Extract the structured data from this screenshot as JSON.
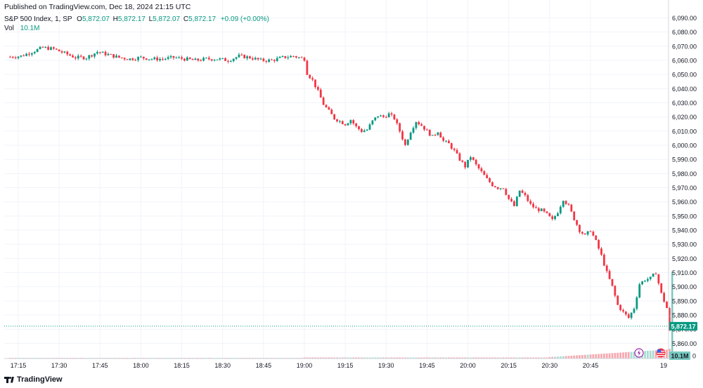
{
  "header": {
    "published": "Published on TradingView.com, Dec 18, 2024 21:15 UTC"
  },
  "legend": {
    "symbol": "S&P 500 Index, 1, SP",
    "open_label": "O",
    "open": "5,872.07",
    "high_label": "H",
    "high": "5,872.17",
    "low_label": "L",
    "low": "5,872.07",
    "close_label": "C",
    "close": "5,872.17",
    "change": "+0.09 (+0.00%)",
    "vol_label": "Vol",
    "vol": "10.1M"
  },
  "footer": {
    "brand": "TradingView"
  },
  "colors": {
    "up": "#089981",
    "down": "#f23645",
    "grid": "#f0f3fa",
    "text": "#131722"
  },
  "chart_data": {
    "type": "candlestick",
    "title": "S&P 500 Index, 1, SP",
    "ylim": [
      5852,
      6096
    ],
    "y_ticks": [
      6090,
      6080,
      6070,
      6060,
      6050,
      6040,
      6030,
      6020,
      6010,
      6000,
      5990,
      5980,
      5970,
      5960,
      5950,
      5940,
      5930,
      5920,
      5910,
      5900,
      5890,
      5880,
      5870,
      5860
    ],
    "y_tick_labels": [
      "6,090.00",
      "6,080.00",
      "6,070.00",
      "6,060.00",
      "6,050.00",
      "6,040.00",
      "6,030.00",
      "6,020.00",
      "6,010.00",
      "6,000.00",
      "5,990.00",
      "5,980.00",
      "5,970.00",
      "5,960.00",
      "5,950.00",
      "5,940.00",
      "5,930.00",
      "5,920.00",
      "5,910.00",
      "5,900.00",
      "5,890.00",
      "5,880.00",
      "5,870.00",
      "5,860.00"
    ],
    "x_ticks": [
      "17:15",
      "17:30",
      "17:45",
      "18:00",
      "18:15",
      "18:30",
      "18:45",
      "19:00",
      "19:15",
      "19:30",
      "19:45",
      "20:00",
      "20:15",
      "20:30",
      "20:45",
      "19"
    ],
    "last_price_label": "5,872.17",
    "last_price": 5872.17,
    "volume_label": "10.1M",
    "volume_zero_label": "0",
    "close_path": [
      [
        "17:12",
        6062.5
      ],
      [
        "17:16",
        6063
      ],
      [
        "17:20",
        6066
      ],
      [
        "17:24",
        6069
      ],
      [
        "17:28",
        6068
      ],
      [
        "17:32",
        6065
      ],
      [
        "17:36",
        6062
      ],
      [
        "17:40",
        6062
      ],
      [
        "17:44",
        6066
      ],
      [
        "17:48",
        6064
      ],
      [
        "17:52",
        6062
      ],
      [
        "17:56",
        6061
      ],
      [
        "18:00",
        6062
      ],
      [
        "18:04",
        6061
      ],
      [
        "18:08",
        6061
      ],
      [
        "18:12",
        6062
      ],
      [
        "18:16",
        6061
      ],
      [
        "18:20",
        6060
      ],
      [
        "18:24",
        6061
      ],
      [
        "18:28",
        6061
      ],
      [
        "18:32",
        6060
      ],
      [
        "18:36",
        6063
      ],
      [
        "18:40",
        6062
      ],
      [
        "18:44",
        6060
      ],
      [
        "18:48",
        6060
      ],
      [
        "18:52",
        6062
      ],
      [
        "18:56",
        6063
      ],
      [
        "19:00",
        6061
      ],
      [
        "19:01",
        6051
      ],
      [
        "19:03",
        6046
      ],
      [
        "19:05",
        6038
      ],
      [
        "19:07",
        6029
      ],
      [
        "19:09",
        6024
      ],
      [
        "19:11",
        6019
      ],
      [
        "19:13",
        6017
      ],
      [
        "19:15",
        6015
      ],
      [
        "19:17",
        6018
      ],
      [
        "19:19",
        6013
      ],
      [
        "19:21",
        6010
      ],
      [
        "19:23",
        6011
      ],
      [
        "19:25",
        6017
      ],
      [
        "19:27",
        6021
      ],
      [
        "19:29",
        6020
      ],
      [
        "19:31",
        6022
      ],
      [
        "19:33",
        6019
      ],
      [
        "19:35",
        6010
      ],
      [
        "19:37",
        6000
      ],
      [
        "19:39",
        6010
      ],
      [
        "19:41",
        6017
      ],
      [
        "19:43",
        6014
      ],
      [
        "19:45",
        6010
      ],
      [
        "19:47",
        6006
      ],
      [
        "19:49",
        6010
      ],
      [
        "19:51",
        6003
      ],
      [
        "19:53",
        6001
      ],
      [
        "19:55",
        5996
      ],
      [
        "19:57",
        5990
      ],
      [
        "19:59",
        5985
      ],
      [
        "20:01",
        5992
      ],
      [
        "20:03",
        5986
      ],
      [
        "20:05",
        5981
      ],
      [
        "20:07",
        5976
      ],
      [
        "20:09",
        5972
      ],
      [
        "20:11",
        5970
      ],
      [
        "20:13",
        5970
      ],
      [
        "20:15",
        5962
      ],
      [
        "20:17",
        5957
      ],
      [
        "20:19",
        5968
      ],
      [
        "20:21",
        5964
      ],
      [
        "20:23",
        5958
      ],
      [
        "20:25",
        5955
      ],
      [
        "20:27",
        5954
      ],
      [
        "20:29",
        5951
      ],
      [
        "20:31",
        5947
      ],
      [
        "20:33",
        5953
      ],
      [
        "20:35",
        5962
      ],
      [
        "20:37",
        5957
      ],
      [
        "20:39",
        5948
      ],
      [
        "20:41",
        5940
      ],
      [
        "20:43",
        5936
      ],
      [
        "20:45",
        5940
      ],
      [
        "20:47",
        5932
      ],
      [
        "20:49",
        5922
      ],
      [
        "20:51",
        5910
      ],
      [
        "20:53",
        5900
      ],
      [
        "20:55",
        5887
      ],
      [
        "20:57",
        5882
      ],
      [
        "20:59",
        5878
      ],
      [
        "21:01",
        5885
      ],
      [
        "21:03",
        5902
      ],
      [
        "21:05",
        5905
      ],
      [
        "21:07",
        5906
      ],
      [
        "21:09",
        5910
      ],
      [
        "21:11",
        5895
      ],
      [
        "21:13",
        5885
      ],
      [
        "21:15",
        5872.17
      ]
    ],
    "last_bar": {
      "open": 5872.07,
      "high": 5872.17,
      "low": 5872.07,
      "close": 5872.17,
      "volume": "10.1M"
    }
  }
}
